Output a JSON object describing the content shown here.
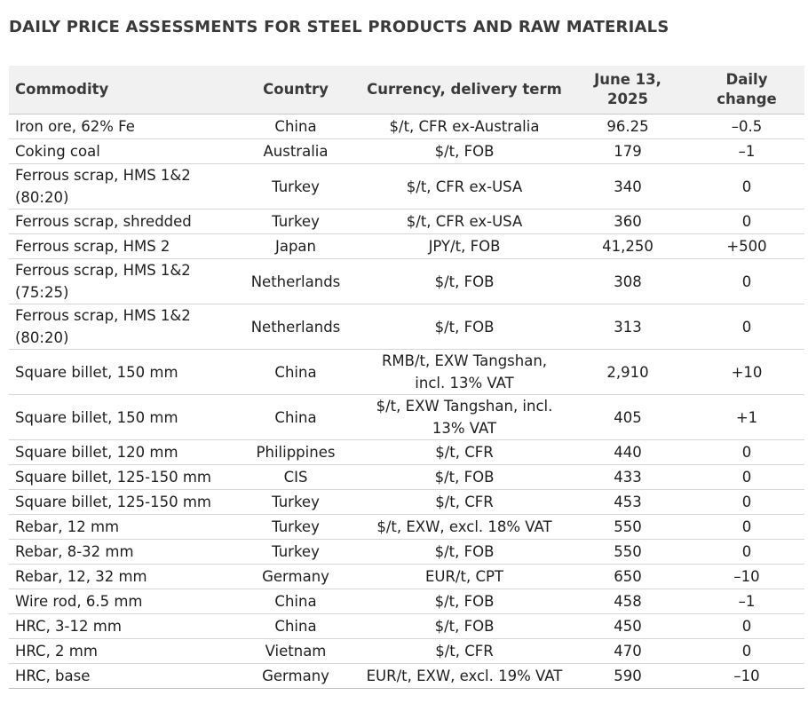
{
  "title": "DAILY PRICE ASSESSMENTS FOR STEEL PRODUCTS AND RAW MATERIALS",
  "table": {
    "headers": {
      "commodity": "Commodity",
      "country": "Country",
      "currency": "Currency, delivery term",
      "date_line1": "June 13,",
      "date_line2": "2025",
      "change_line1": "Daily",
      "change_line2": "change"
    },
    "rows": [
      {
        "commodity": "Iron ore, 62% Fe",
        "country": "China",
        "currency": "$/t, CFR ex-Australia",
        "price": "96.25",
        "change": "–0.5"
      },
      {
        "commodity": "Coking coal",
        "country": "Australia",
        "currency": "$/t, FOB",
        "price": "179",
        "change": "–1"
      },
      {
        "commodity": "Ferrous scrap, HMS 1&2 (80:20)",
        "country": "Turkey",
        "currency": "$/t, CFR ex-USA",
        "price": "340",
        "change": "0"
      },
      {
        "commodity": "Ferrous scrap, shredded",
        "country": "Turkey",
        "currency": "$/t, CFR ex-USA",
        "price": "360",
        "change": "0"
      },
      {
        "commodity": "Ferrous scrap, HMS 2",
        "country": "Japan",
        "currency": "JPY/t, FOB",
        "price": "41,250",
        "change": "+500"
      },
      {
        "commodity": "Ferrous scrap, HMS 1&2 (75:25)",
        "country": "Netherlands",
        "currency": "$/t, FOB",
        "price": "308",
        "change": "0"
      },
      {
        "commodity": "Ferrous scrap, HMS 1&2 (80:20)",
        "country": "Netherlands",
        "currency": "$/t, FOB",
        "price": "313",
        "change": "0"
      },
      {
        "commodity": "Square billet, 150 mm",
        "country": "China",
        "currency": "RMB/t, EXW Tangshan, incl. 13% VAT",
        "price": "2,910",
        "change": "+10"
      },
      {
        "commodity": "Square billet, 150 mm",
        "country": "China",
        "currency": "$/t, EXW Tangshan, incl. 13% VAT",
        "price": "405",
        "change": "+1"
      },
      {
        "commodity": "Square billet, 120 mm",
        "country": "Philippines",
        "currency": "$/t, CFR",
        "price": "440",
        "change": "0"
      },
      {
        "commodity": "Square billet, 125-150 mm",
        "country": "CIS",
        "currency": "$/t, FOB",
        "price": "433",
        "change": "0"
      },
      {
        "commodity": "Square billet, 125-150 mm",
        "country": "Turkey",
        "currency": "$/t, CFR",
        "price": "453",
        "change": "0"
      },
      {
        "commodity": "Rebar, 12 mm",
        "country": "Turkey",
        "currency": "$/t, EXW, excl. 18% VAT",
        "price": "550",
        "change": "0"
      },
      {
        "commodity": "Rebar, 8-32 mm",
        "country": "Turkey",
        "currency": "$/t, FOB",
        "price": "550",
        "change": "0"
      },
      {
        "commodity": "Rebar, 12, 32 mm",
        "country": "Germany",
        "currency": "EUR/t, CPT",
        "price": "650",
        "change": "–10"
      },
      {
        "commodity": "Wire rod, 6.5 mm",
        "country": "China",
        "currency": "$/t, FOB",
        "price": "458",
        "change": "–1"
      },
      {
        "commodity": "HRC, 3-12 mm",
        "country": "China",
        "currency": "$/t, FOB",
        "price": "450",
        "change": "0"
      },
      {
        "commodity": "HRC, 2 mm",
        "country": "Vietnam",
        "currency": "$/t, CFR",
        "price": "470",
        "change": "0"
      },
      {
        "commodity": "HRC, base",
        "country": "Germany",
        "currency": "EUR/t, EXW, excl. 19% VAT",
        "price": "590",
        "change": "–10"
      }
    ]
  }
}
